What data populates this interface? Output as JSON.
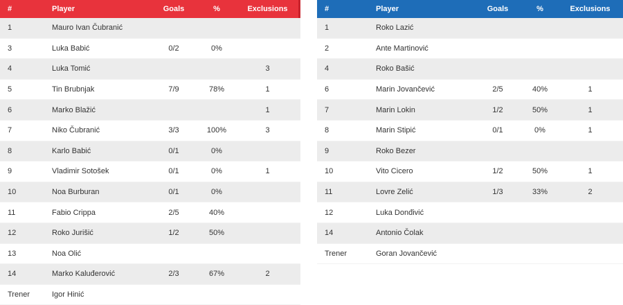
{
  "home": {
    "headers": {
      "num": "#",
      "player": "Player",
      "goals": "Goals",
      "pct": "%",
      "exclusions": "Exclusions"
    },
    "rows": [
      {
        "num": "1",
        "player": "Mauro Ivan Čubranić",
        "goals": "",
        "pct": "",
        "exclusions": ""
      },
      {
        "num": "3",
        "player": "Luka Babić",
        "goals": "0/2",
        "pct": "0%",
        "exclusions": ""
      },
      {
        "num": "4",
        "player": "Luka Tomić",
        "goals": "",
        "pct": "",
        "exclusions": "3"
      },
      {
        "num": "5",
        "player": "Tin Brubnjak",
        "goals": "7/9",
        "pct": "78%",
        "exclusions": "1"
      },
      {
        "num": "6",
        "player": "Marko Blažić",
        "goals": "",
        "pct": "",
        "exclusions": "1"
      },
      {
        "num": "7",
        "player": "Niko Čubranić",
        "goals": "3/3",
        "pct": "100%",
        "exclusions": "3"
      },
      {
        "num": "8",
        "player": "Karlo Babić",
        "goals": "0/1",
        "pct": "0%",
        "exclusions": ""
      },
      {
        "num": "9",
        "player": "Vladimir Sotošek",
        "goals": "0/1",
        "pct": "0%",
        "exclusions": "1"
      },
      {
        "num": "10",
        "player": "Noa Burburan",
        "goals": "0/1",
        "pct": "0%",
        "exclusions": ""
      },
      {
        "num": "11",
        "player": "Fabio Crippa",
        "goals": "2/5",
        "pct": "40%",
        "exclusions": ""
      },
      {
        "num": "12",
        "player": "Roko Jurišić",
        "goals": "1/2",
        "pct": "50%",
        "exclusions": ""
      },
      {
        "num": "13",
        "player": "Noa Olić",
        "goals": "",
        "pct": "",
        "exclusions": ""
      },
      {
        "num": "14",
        "player": "Marko Kaluđerović",
        "goals": "2/3",
        "pct": "67%",
        "exclusions": "2"
      }
    ],
    "coach": {
      "label": "Trener",
      "name": "Igor Hinić"
    },
    "colors": {
      "header": "#e8333c"
    }
  },
  "away": {
    "headers": {
      "num": "#",
      "player": "Player",
      "goals": "Goals",
      "pct": "%",
      "exclusions": "Exclusions"
    },
    "rows": [
      {
        "num": "1",
        "player": "Roko Lazić",
        "goals": "",
        "pct": "",
        "exclusions": ""
      },
      {
        "num": "2",
        "player": "Ante Martinović",
        "goals": "",
        "pct": "",
        "exclusions": ""
      },
      {
        "num": "4",
        "player": "Roko Bašić",
        "goals": "",
        "pct": "",
        "exclusions": ""
      },
      {
        "num": "6",
        "player": "Marin Jovančević",
        "goals": "2/5",
        "pct": "40%",
        "exclusions": "1"
      },
      {
        "num": "7",
        "player": "Marin Lokin",
        "goals": "1/2",
        "pct": "50%",
        "exclusions": "1"
      },
      {
        "num": "8",
        "player": "Marin Stipić",
        "goals": "0/1",
        "pct": "0%",
        "exclusions": "1"
      },
      {
        "num": "9",
        "player": "Roko Bezer",
        "goals": "",
        "pct": "",
        "exclusions": ""
      },
      {
        "num": "10",
        "player": "Vito Cicero",
        "goals": "1/2",
        "pct": "50%",
        "exclusions": "1"
      },
      {
        "num": "11",
        "player": "Lovre Zelić",
        "goals": "1/3",
        "pct": "33%",
        "exclusions": "2"
      },
      {
        "num": "12",
        "player": "Luka Donđivić",
        "goals": "",
        "pct": "",
        "exclusions": ""
      },
      {
        "num": "14",
        "player": "Antonio Čolak",
        "goals": "",
        "pct": "",
        "exclusions": ""
      }
    ],
    "coach": {
      "label": "Trener",
      "name": "Goran Jovančević"
    },
    "colors": {
      "header": "#1e6db8"
    }
  }
}
